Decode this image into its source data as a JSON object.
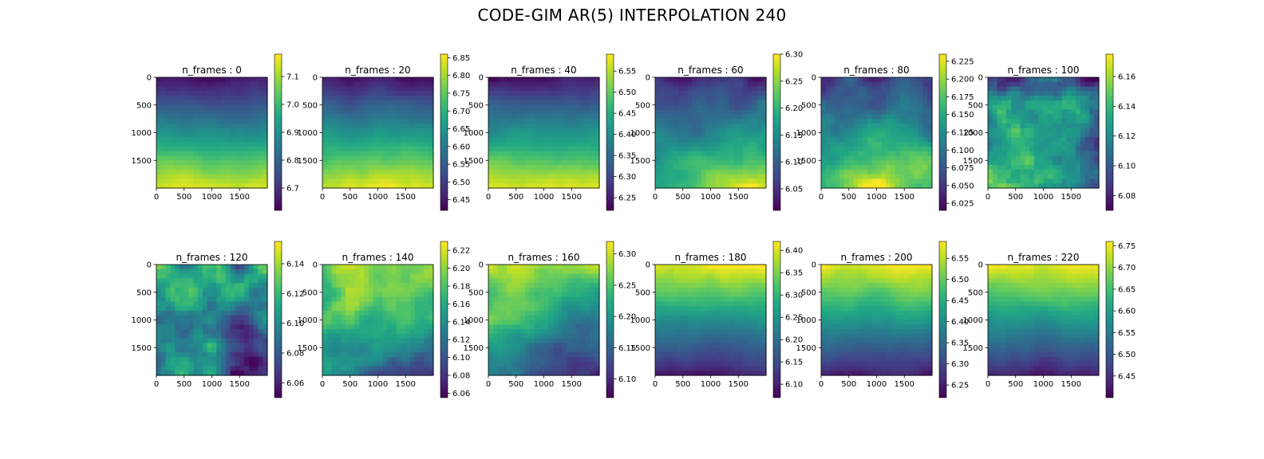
{
  "figure": {
    "title": "CODE-GIM AR(5) INTERPOLATION 240"
  },
  "chart_data": [
    {
      "type": "heatmap",
      "title": "n_frames : 0",
      "pattern": "vertical",
      "x_ticks": [
        "0",
        "500",
        "1000",
        "1500"
      ],
      "y_ticks": [
        "0",
        "500",
        "1000",
        "1500"
      ],
      "colorbar": {
        "ticks": [
          "6.7",
          "6.8",
          "6.9",
          "7.0",
          "7.1"
        ],
        "range": [
          6.62,
          7.18
        ]
      }
    },
    {
      "type": "heatmap",
      "title": "n_frames : 20",
      "pattern": "vertical",
      "x_ticks": [
        "0",
        "500",
        "1000",
        "1500"
      ],
      "y_ticks": [
        "0",
        "500",
        "1000",
        "1500"
      ],
      "colorbar": {
        "ticks": [
          "6.45",
          "6.50",
          "6.55",
          "6.60",
          "6.65",
          "6.70",
          "6.75",
          "6.80",
          "6.85"
        ],
        "range": [
          6.42,
          6.86
        ]
      }
    },
    {
      "type": "heatmap",
      "title": "n_frames : 40",
      "pattern": "vertical",
      "x_ticks": [
        "0",
        "500",
        "1000",
        "1500"
      ],
      "y_ticks": [
        "0",
        "500",
        "1000",
        "1500"
      ],
      "colorbar": {
        "ticks": [
          "6.25",
          "6.30",
          "6.35",
          "6.40",
          "6.45",
          "6.50",
          "6.55"
        ],
        "range": [
          6.22,
          6.59
        ]
      }
    },
    {
      "type": "heatmap",
      "title": "n_frames : 60",
      "pattern": "diagonal-bottom-right",
      "x_ticks": [
        "0",
        "500",
        "1000",
        "1500"
      ],
      "y_ticks": [
        "0",
        "500",
        "1000",
        "1500"
      ],
      "colorbar": {
        "ticks": [
          "6.05",
          "6.10",
          "6.15",
          "6.20",
          "6.25",
          "6.30"
        ],
        "range": [
          6.01,
          6.3
        ]
      }
    },
    {
      "type": "heatmap",
      "title": "n_frames : 80",
      "pattern": "bottom-center-bright",
      "x_ticks": [
        "0",
        "500",
        "1000",
        "1500"
      ],
      "y_ticks": [
        "0",
        "500",
        "1000",
        "1500"
      ],
      "colorbar": {
        "ticks": [
          "6.025",
          "6.050",
          "6.075",
          "6.100",
          "6.125",
          "6.150",
          "6.175",
          "6.200",
          "6.225"
        ],
        "range": [
          6.015,
          6.235
        ]
      }
    },
    {
      "type": "heatmap",
      "title": "n_frames : 100",
      "pattern": "patchy-bottom-left-bright",
      "x_ticks": [
        "0",
        "500",
        "1000",
        "1500"
      ],
      "y_ticks": [
        "0",
        "500",
        "1000",
        "1500"
      ],
      "colorbar": {
        "ticks": [
          "6.08",
          "6.10",
          "6.12",
          "6.14",
          "6.16"
        ],
        "range": [
          6.07,
          6.175
        ]
      }
    },
    {
      "type": "heatmap",
      "title": "n_frames : 120",
      "pattern": "patchy-bottom-right-dark",
      "x_ticks": [
        "0",
        "500",
        "1000",
        "1500"
      ],
      "y_ticks": [
        "0",
        "500",
        "1000",
        "1500"
      ],
      "colorbar": {
        "ticks": [
          "6.06",
          "6.08",
          "6.10",
          "6.12",
          "6.14"
        ],
        "range": [
          6.05,
          6.155
        ]
      }
    },
    {
      "type": "heatmap",
      "title": "n_frames : 140",
      "pattern": "top-bright-bottom-right-dark",
      "x_ticks": [
        "0",
        "500",
        "1000",
        "1500"
      ],
      "y_ticks": [
        "0",
        "500",
        "1000",
        "1500"
      ],
      "colorbar": {
        "ticks": [
          "6.06",
          "6.08",
          "6.10",
          "6.12",
          "6.14",
          "6.16",
          "6.18",
          "6.20",
          "6.22"
        ],
        "range": [
          6.055,
          6.23
        ]
      }
    },
    {
      "type": "heatmap",
      "title": "n_frames : 160",
      "pattern": "top-left-bright",
      "x_ticks": [
        "0",
        "500",
        "1000",
        "1500"
      ],
      "y_ticks": [
        "0",
        "500",
        "1000",
        "1500"
      ],
      "colorbar": {
        "ticks": [
          "6.10",
          "6.15",
          "6.20",
          "6.25",
          "6.30"
        ],
        "range": [
          6.07,
          6.32
        ]
      }
    },
    {
      "type": "heatmap",
      "title": "n_frames : 180",
      "pattern": "top-bright",
      "x_ticks": [
        "0",
        "500",
        "1000",
        "1500"
      ],
      "y_ticks": [
        "0",
        "500",
        "1000",
        "1500"
      ],
      "colorbar": {
        "ticks": [
          "6.10",
          "6.15",
          "6.20",
          "6.25",
          "6.30",
          "6.35",
          "6.40"
        ],
        "range": [
          6.07,
          6.42
        ]
      }
    },
    {
      "type": "heatmap",
      "title": "n_frames : 200",
      "pattern": "top-bright",
      "x_ticks": [
        "0",
        "500",
        "1000",
        "1500"
      ],
      "y_ticks": [
        "0",
        "500",
        "1000",
        "1500"
      ],
      "colorbar": {
        "ticks": [
          "6.25",
          "6.30",
          "6.35",
          "6.40",
          "6.45",
          "6.50",
          "6.55"
        ],
        "range": [
          6.22,
          6.59
        ]
      }
    },
    {
      "type": "heatmap",
      "title": "n_frames : 220",
      "pattern": "top-bright",
      "x_ticks": [
        "0",
        "500",
        "1000",
        "1500"
      ],
      "y_ticks": [
        "0",
        "500",
        "1000",
        "1500"
      ],
      "colorbar": {
        "ticks": [
          "6.45",
          "6.50",
          "6.55",
          "6.60",
          "6.65",
          "6.70",
          "6.75"
        ],
        "range": [
          6.4,
          6.76
        ]
      }
    }
  ],
  "colormap": "viridis"
}
